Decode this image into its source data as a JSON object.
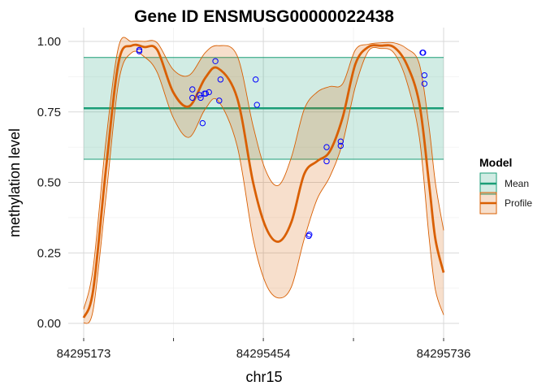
{
  "chart_data": {
    "type": "line",
    "title": "Gene ID ENSMUSG00000022438",
    "xlabel": "chr15",
    "ylabel": "methylation level",
    "xlim": [
      84295173,
      84295736
    ],
    "ylim": [
      0,
      1
    ],
    "x_ticks": [
      84295173,
      84295454,
      84295736
    ],
    "x_tick_labels": [
      "84295173",
      "84295454",
      "84295736"
    ],
    "y_ticks": [
      0,
      0.25,
      0.5,
      0.75,
      1
    ],
    "y_tick_labels": [
      "0.00",
      "0.25",
      "0.50",
      "0.75",
      "1.00"
    ],
    "grid": true,
    "legend": {
      "title": "Model",
      "position": "right",
      "entries": [
        {
          "label": "Mean",
          "color": "#1b9e77"
        },
        {
          "label": "Profile",
          "color": "#d95f02"
        }
      ]
    },
    "mean": {
      "value": 0.763,
      "lower": 0.582,
      "upper": 0.943,
      "color": "#1b9e77"
    },
    "profile": {
      "color": "#d95f02",
      "x": [
        84295173,
        84295188,
        84295208,
        84295228,
        84295248,
        84295268,
        84295288,
        84295313,
        84295338,
        84295363,
        84295383,
        84295413,
        84295438,
        84295458,
        84295478,
        84295498,
        84295518,
        84295538,
        84295558,
        84295578,
        84295598,
        84295618,
        84295638,
        84295658,
        84295678,
        84295698,
        84295713,
        84295723,
        84295736
      ],
      "y": [
        0.02,
        0.12,
        0.55,
        0.93,
        0.985,
        0.98,
        0.97,
        0.82,
        0.77,
        0.87,
        0.905,
        0.8,
        0.5,
        0.34,
        0.29,
        0.36,
        0.53,
        0.575,
        0.61,
        0.73,
        0.92,
        0.98,
        0.985,
        0.98,
        0.92,
        0.78,
        0.5,
        0.3,
        0.18
      ],
      "lower": [
        0.0,
        0.05,
        0.45,
        0.86,
        0.96,
        0.945,
        0.89,
        0.73,
        0.66,
        0.76,
        0.79,
        0.63,
        0.3,
        0.14,
        0.09,
        0.13,
        0.3,
        0.44,
        0.52,
        0.64,
        0.84,
        0.965,
        0.975,
        0.96,
        0.86,
        0.66,
        0.31,
        0.12,
        0.03
      ],
      "upper": [
        0.05,
        0.2,
        0.65,
        0.985,
        1.0,
        1.0,
        0.995,
        0.9,
        0.88,
        0.96,
        0.985,
        0.95,
        0.7,
        0.54,
        0.49,
        0.59,
        0.76,
        0.82,
        0.84,
        0.85,
        0.97,
        0.99,
        0.995,
        0.995,
        0.975,
        0.92,
        0.7,
        0.5,
        0.33
      ]
    },
    "points": {
      "color": "#0000ff",
      "x": [
        84295260,
        84295260,
        84295343,
        84295343,
        84295354,
        84295356,
        84295359,
        84295362,
        84295364,
        84295369,
        84295379,
        84295385,
        84295387,
        84295442,
        84295444,
        84295525,
        84295526,
        84295553,
        84295553,
        84295575,
        84295575,
        84295703,
        84295704,
        84295706
      ],
      "y": [
        0.965,
        0.97,
        0.83,
        0.8,
        0.81,
        0.8,
        0.71,
        0.815,
        0.815,
        0.82,
        0.93,
        0.79,
        0.865,
        0.865,
        0.775,
        0.31,
        0.315,
        0.625,
        0.575,
        0.645,
        0.63,
        0.96,
        0.96,
        0.88
      ]
    },
    "extra_points": {
      "x": [
        84295706
      ],
      "y": [
        0.85
      ]
    }
  }
}
